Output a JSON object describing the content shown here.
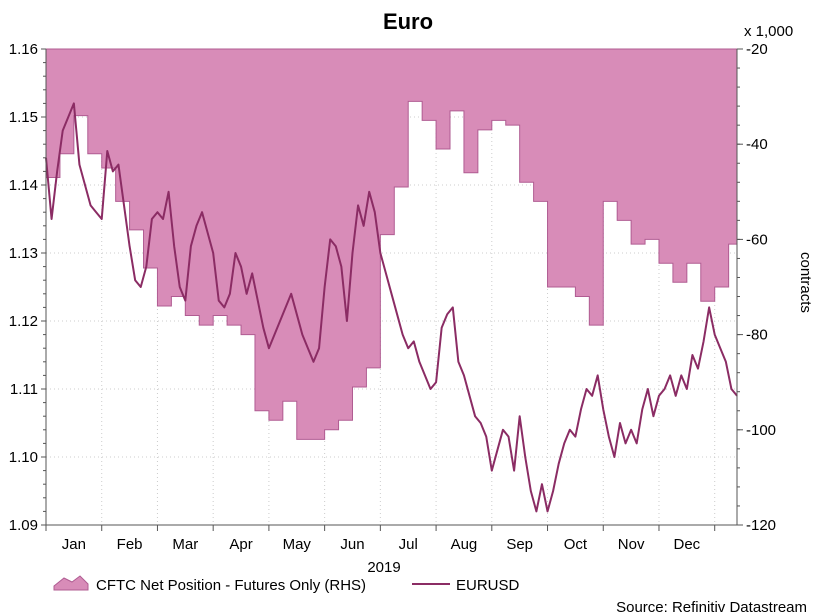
{
  "chart_data": {
    "type": "area",
    "title": "Euro",
    "xlabel": "2019",
    "right_axis_multiplier": "x 1,000",
    "right_axis_label": "contracts",
    "source": "Source: Refinitiv Datastream",
    "x_tick_labels": [
      "Jan",
      "Feb",
      "Mar",
      "Apr",
      "May",
      "Jun",
      "Jul",
      "Aug",
      "Sep",
      "Oct",
      "Nov",
      "Dec"
    ],
    "x_range": [
      0,
      12.4
    ],
    "left_axis": {
      "ylim": [
        1.09,
        1.16
      ],
      "ticks": [
        1.09,
        1.1,
        1.11,
        1.12,
        1.13,
        1.14,
        1.15,
        1.16
      ],
      "tick_labels": [
        "1.09",
        "1.10",
        "1.11",
        "1.12",
        "1.13",
        "1.14",
        "1.15",
        "1.16"
      ]
    },
    "right_axis": {
      "ylim": [
        -120,
        -20
      ],
      "ticks": [
        -120,
        -100,
        -80,
        -60,
        -40,
        -20
      ],
      "tick_labels": [
        "-120",
        "-100",
        "-80",
        "-60",
        "-40",
        "-20"
      ]
    },
    "grid": true,
    "legend_position": "bottom-left",
    "colors": {
      "area_fill": "#d88cb8",
      "area_edge": "#b05c92",
      "line": "#8b2c64",
      "grid": "#cccccc",
      "axis": "#555555"
    },
    "series": [
      {
        "name": "CFTC Net Position - Futures Only (RHS)",
        "axis": "right",
        "kind": "area-step",
        "x": [
          0,
          0.25,
          0.5,
          0.75,
          1.0,
          1.25,
          1.5,
          1.75,
          2.0,
          2.25,
          2.5,
          2.75,
          3.0,
          3.25,
          3.5,
          3.75,
          4.0,
          4.25,
          4.5,
          4.75,
          5.0,
          5.25,
          5.5,
          5.75,
          6.0,
          6.25,
          6.5,
          6.75,
          7.0,
          7.25,
          7.5,
          7.75,
          8.0,
          8.25,
          8.5,
          8.75,
          9.0,
          9.25,
          9.5,
          9.75,
          10.0,
          10.25,
          10.5,
          10.75,
          11.0,
          11.25,
          11.5,
          11.75,
          12.0,
          12.25,
          12.4
        ],
        "values": [
          -47,
          -42,
          -34,
          -42,
          -45,
          -52,
          -58,
          -66,
          -74,
          -72,
          -76,
          -78,
          -76,
          -78,
          -80,
          -96,
          -98,
          -94,
          -102,
          -102,
          -100,
          -98,
          -91,
          -87,
          -59,
          -49,
          -31,
          -35,
          -41,
          -33,
          -46,
          -37,
          -35,
          -36,
          -48,
          -52,
          -70,
          -70,
          -72,
          -78,
          -52,
          -56,
          -61,
          -60,
          -65,
          -69,
          -65,
          -73,
          -70,
          -61,
          -60
        ]
      },
      {
        "name": "EURUSD",
        "axis": "left",
        "kind": "line",
        "x": [
          0,
          0.1,
          0.2,
          0.3,
          0.4,
          0.5,
          0.6,
          0.7,
          0.8,
          0.9,
          1.0,
          1.1,
          1.2,
          1.3,
          1.4,
          1.5,
          1.6,
          1.7,
          1.8,
          1.9,
          2.0,
          2.1,
          2.2,
          2.3,
          2.4,
          2.5,
          2.6,
          2.7,
          2.8,
          2.9,
          3.0,
          3.1,
          3.2,
          3.3,
          3.4,
          3.5,
          3.6,
          3.7,
          3.8,
          3.9,
          4.0,
          4.1,
          4.2,
          4.3,
          4.4,
          4.5,
          4.6,
          4.7,
          4.8,
          4.9,
          5.0,
          5.1,
          5.2,
          5.3,
          5.4,
          5.5,
          5.6,
          5.7,
          5.8,
          5.9,
          6.0,
          6.1,
          6.2,
          6.3,
          6.4,
          6.5,
          6.6,
          6.7,
          6.8,
          6.9,
          7.0,
          7.1,
          7.2,
          7.3,
          7.4,
          7.5,
          7.6,
          7.7,
          7.8,
          7.9,
          8.0,
          8.1,
          8.2,
          8.3,
          8.4,
          8.5,
          8.6,
          8.7,
          8.8,
          8.9,
          9.0,
          9.1,
          9.2,
          9.3,
          9.4,
          9.5,
          9.6,
          9.7,
          9.8,
          9.9,
          10.0,
          10.1,
          10.2,
          10.3,
          10.4,
          10.5,
          10.6,
          10.7,
          10.8,
          10.9,
          11.0,
          11.1,
          11.2,
          11.3,
          11.4,
          11.5,
          11.6,
          11.7,
          11.8,
          11.9,
          12.0,
          12.1,
          12.2,
          12.3,
          12.4
        ],
        "values": [
          1.144,
          1.135,
          1.142,
          1.148,
          1.15,
          1.152,
          1.143,
          1.14,
          1.137,
          1.136,
          1.135,
          1.145,
          1.142,
          1.143,
          1.137,
          1.131,
          1.126,
          1.125,
          1.128,
          1.135,
          1.136,
          1.135,
          1.139,
          1.131,
          1.125,
          1.123,
          1.131,
          1.134,
          1.136,
          1.133,
          1.13,
          1.123,
          1.122,
          1.124,
          1.13,
          1.128,
          1.124,
          1.127,
          1.123,
          1.119,
          1.116,
          1.118,
          1.12,
          1.122,
          1.124,
          1.121,
          1.118,
          1.116,
          1.114,
          1.116,
          1.125,
          1.132,
          1.131,
          1.128,
          1.12,
          1.13,
          1.137,
          1.134,
          1.139,
          1.136,
          1.13,
          1.127,
          1.124,
          1.121,
          1.118,
          1.116,
          1.117,
          1.114,
          1.112,
          1.11,
          1.111,
          1.119,
          1.121,
          1.122,
          1.114,
          1.112,
          1.109,
          1.106,
          1.105,
          1.103,
          1.098,
          1.101,
          1.104,
          1.103,
          1.098,
          1.106,
          1.1,
          1.095,
          1.092,
          1.096,
          1.092,
          1.095,
          1.099,
          1.102,
          1.104,
          1.103,
          1.107,
          1.11,
          1.109,
          1.112,
          1.107,
          1.103,
          1.1,
          1.105,
          1.102,
          1.104,
          1.102,
          1.107,
          1.11,
          1.106,
          1.109,
          1.11,
          1.112,
          1.109,
          1.112,
          1.11,
          1.115,
          1.113,
          1.117,
          1.122,
          1.118,
          1.116,
          1.114,
          1.11,
          1.109
        ]
      }
    ]
  }
}
